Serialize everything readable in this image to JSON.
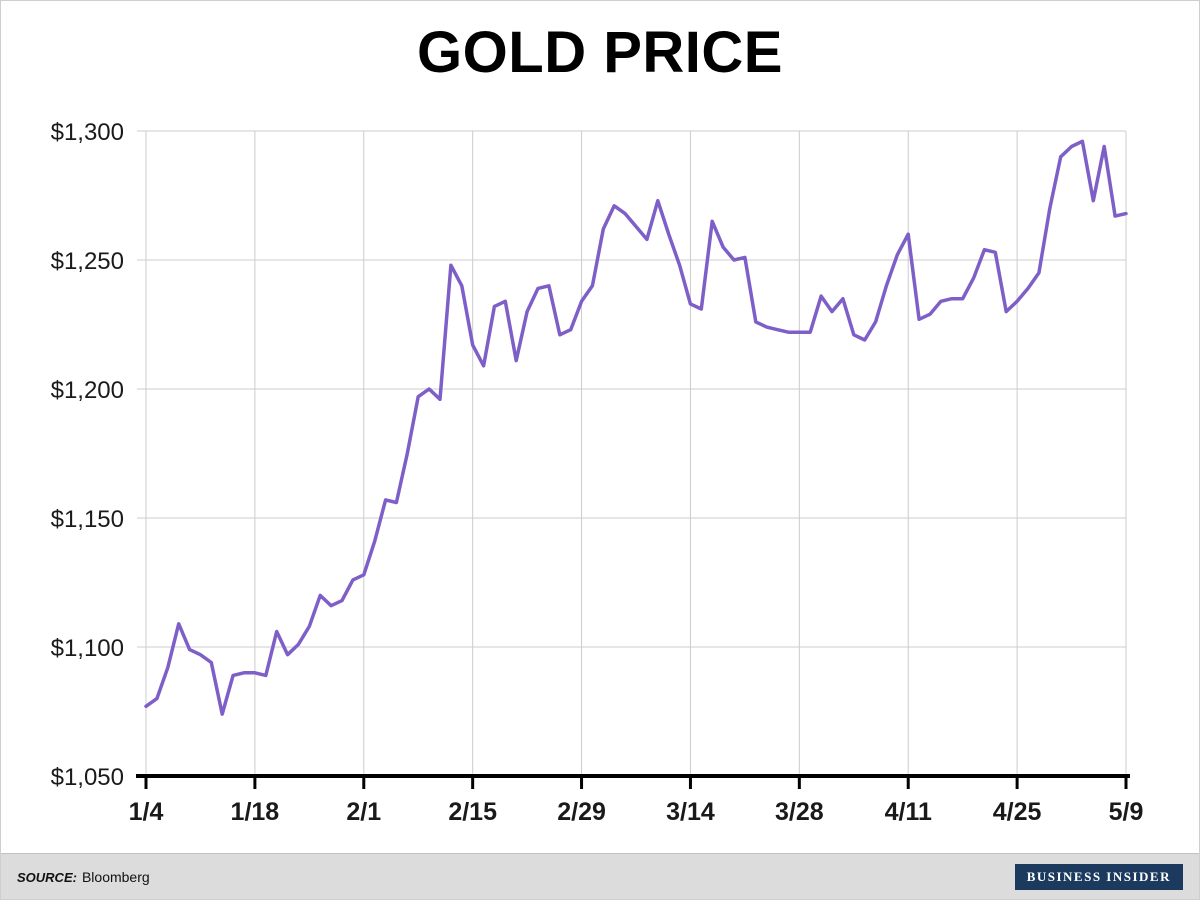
{
  "title": "GOLD PRICE",
  "footer": {
    "source_label": "SOURCE:",
    "source_value": "Bloomberg",
    "logo_text": "BUSINESS INSIDER"
  },
  "colors": {
    "line": "#7e5fc8",
    "grid": "#cccccc",
    "axis": "#000000",
    "label": "#1a1a1a",
    "footer_bg": "#dcdcdc",
    "logo_bg": "#1b3a5e",
    "logo_text": "#ffffff"
  },
  "chart_data": {
    "type": "line",
    "title": "GOLD PRICE",
    "x_tick_labels": [
      "1/4",
      "1/18",
      "2/1",
      "2/15",
      "2/29",
      "3/14",
      "3/28",
      "4/11",
      "4/25",
      "5/9"
    ],
    "x_tick_indices": [
      0,
      10,
      20,
      30,
      40,
      50,
      60,
      70,
      80,
      90
    ],
    "y_ticks": [
      1050,
      1100,
      1150,
      1200,
      1250,
      1300
    ],
    "y_tick_labels": [
      "$1,050",
      "$1,100",
      "$1,150",
      "$1,200",
      "$1,250",
      "$1,300"
    ],
    "ylim": [
      1050,
      1300
    ],
    "grid": true,
    "legend": "none",
    "values": [
      1077,
      1080,
      1092,
      1109,
      1099,
      1097,
      1094,
      1074,
      1089,
      1090,
      1090,
      1089,
      1106,
      1097,
      1101,
      1108,
      1120,
      1116,
      1118,
      1126,
      1128,
      1141,
      1157,
      1156,
      1175,
      1197,
      1200,
      1196,
      1248,
      1240,
      1217,
      1209,
      1232,
      1234,
      1211,
      1230,
      1239,
      1240,
      1221,
      1223,
      1234,
      1240,
      1262,
      1271,
      1268,
      1263,
      1258,
      1273,
      1260,
      1248,
      1233,
      1231,
      1265,
      1255,
      1250,
      1251,
      1226,
      1224,
      1223,
      1222,
      1222,
      1222,
      1236,
      1230,
      1235,
      1221,
      1219,
      1226,
      1240,
      1252,
      1260,
      1227,
      1229,
      1234,
      1235,
      1235,
      1243,
      1254,
      1253,
      1230,
      1234,
      1239,
      1245,
      1270,
      1290,
      1294,
      1296,
      1273,
      1294,
      1267,
      1268
    ]
  }
}
